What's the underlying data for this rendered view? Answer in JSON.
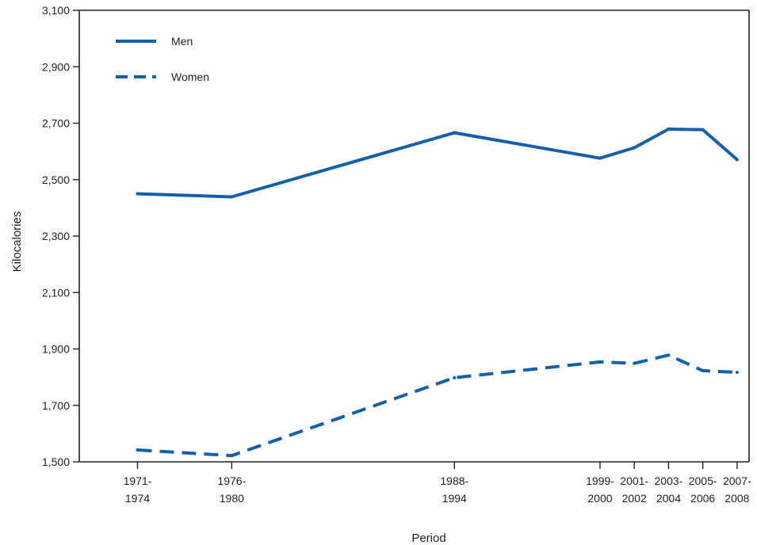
{
  "chart_data": {
    "type": "line",
    "xlabel": "Period",
    "ylabel": "Kilocalories",
    "ylim": [
      1500,
      3100
    ],
    "y_ticks": [
      "1,500",
      "1,700",
      "1,900",
      "2,100",
      "2,300",
      "2,500",
      "2,700",
      "2,900",
      "3,100"
    ],
    "y_tick_values": [
      1500,
      1700,
      1900,
      2100,
      2300,
      2500,
      2700,
      2900,
      3100
    ],
    "categories": [
      {
        "line1": "1971-",
        "line2": "1974",
        "year": 1972.5
      },
      {
        "line1": "1976-",
        "line2": "1980",
        "year": 1978
      },
      {
        "line1": "1988-",
        "line2": "1994",
        "year": 1991
      },
      {
        "line1": "1999-",
        "line2": "2000",
        "year": 1999.5
      },
      {
        "line1": "2001-",
        "line2": "2002",
        "year": 2001.5
      },
      {
        "line1": "2003-",
        "line2": "2004",
        "year": 2003.5
      },
      {
        "line1": "2005-",
        "line2": "2006",
        "year": 2005.5
      },
      {
        "line1": "2007-",
        "line2": "2008",
        "year": 2007.5
      }
    ],
    "series": [
      {
        "name": "Men",
        "style": "solid",
        "values": [
          2450,
          2439,
          2666,
          2576,
          2613,
          2679,
          2677,
          2571
        ]
      },
      {
        "name": "Women",
        "style": "dashed",
        "values": [
          1542,
          1522,
          1798,
          1854,
          1849,
          1878,
          1823,
          1817
        ]
      }
    ],
    "legend_position": "top-left",
    "line_color": "#1560a8",
    "axis_color": "#222222"
  }
}
